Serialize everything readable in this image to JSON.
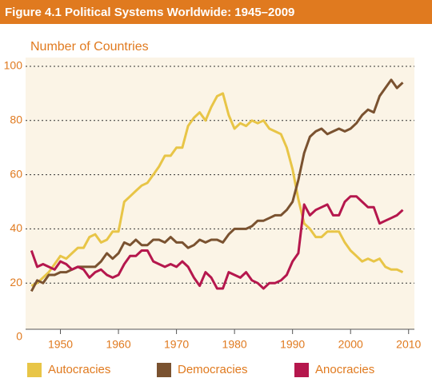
{
  "chart_data": {
    "type": "line",
    "title": "Figure 4.1  Political Systems Worldwide: 1945–2009",
    "y_label": "Number of Countries",
    "x": [
      1945,
      1946,
      1947,
      1948,
      1949,
      1950,
      1951,
      1952,
      1953,
      1954,
      1955,
      1956,
      1957,
      1958,
      1959,
      1960,
      1961,
      1962,
      1963,
      1964,
      1965,
      1966,
      1967,
      1968,
      1969,
      1970,
      1971,
      1972,
      1973,
      1974,
      1975,
      1976,
      1977,
      1978,
      1979,
      1980,
      1981,
      1982,
      1983,
      1984,
      1985,
      1986,
      1987,
      1988,
      1989,
      1990,
      1991,
      1992,
      1993,
      1994,
      1995,
      1996,
      1997,
      1998,
      1999,
      2000,
      2001,
      2002,
      2003,
      2004,
      2005,
      2006,
      2007,
      2008,
      2009
    ],
    "series": [
      {
        "name": "Autocracies",
        "color": "#e8c547",
        "values": [
          19,
          20,
          22,
          24,
          27,
          30,
          29,
          31,
          33,
          33,
          37,
          38,
          35,
          36,
          39,
          39,
          50,
          52,
          54,
          56,
          57,
          60,
          63,
          67,
          67,
          70,
          70,
          78,
          81,
          83,
          80,
          85,
          89,
          90,
          82,
          77,
          79,
          78,
          80,
          79,
          80,
          77,
          76,
          75,
          70,
          62,
          51,
          42,
          40,
          37,
          37,
          39,
          39,
          39,
          35,
          32,
          30,
          28,
          29,
          28,
          29,
          26,
          25,
          25,
          24
        ]
      },
      {
        "name": "Democracies",
        "color": "#7a5230",
        "values": [
          17,
          21,
          20,
          23,
          23,
          24,
          24,
          25,
          26,
          26,
          26,
          26,
          28,
          31,
          29,
          31,
          35,
          34,
          36,
          34,
          34,
          36,
          36,
          35,
          37,
          35,
          35,
          33,
          34,
          36,
          35,
          36,
          36,
          35,
          38,
          40,
          40,
          40,
          41,
          43,
          43,
          44,
          45,
          45,
          47,
          50,
          58,
          68,
          74,
          76,
          77,
          75,
          76,
          77,
          76,
          77,
          79,
          82,
          84,
          83,
          89,
          92,
          95,
          92,
          94
        ]
      },
      {
        "name": "Anocracies",
        "color": "#b5174d",
        "values": [
          32,
          26,
          27,
          26,
          25,
          28,
          27,
          25,
          26,
          25,
          22,
          24,
          25,
          23,
          22,
          23,
          27,
          30,
          30,
          32,
          32,
          28,
          27,
          26,
          27,
          26,
          28,
          26,
          22,
          19,
          24,
          22,
          18,
          18,
          24,
          23,
          22,
          24,
          21,
          20,
          18,
          20,
          20,
          21,
          23,
          28,
          31,
          49,
          45,
          47,
          48,
          49,
          45,
          45,
          50,
          52,
          52,
          50,
          48,
          48,
          42,
          43,
          44,
          45,
          47
        ]
      }
    ],
    "xlim": [
      1944,
      2011
    ],
    "xticks": [
      1950,
      1960,
      1970,
      1980,
      1990,
      2000,
      2010
    ],
    "ylim": [
      0,
      100
    ],
    "yticks": [
      0,
      20,
      40,
      60,
      80,
      100
    ],
    "grid": true,
    "legend": "bottom"
  }
}
